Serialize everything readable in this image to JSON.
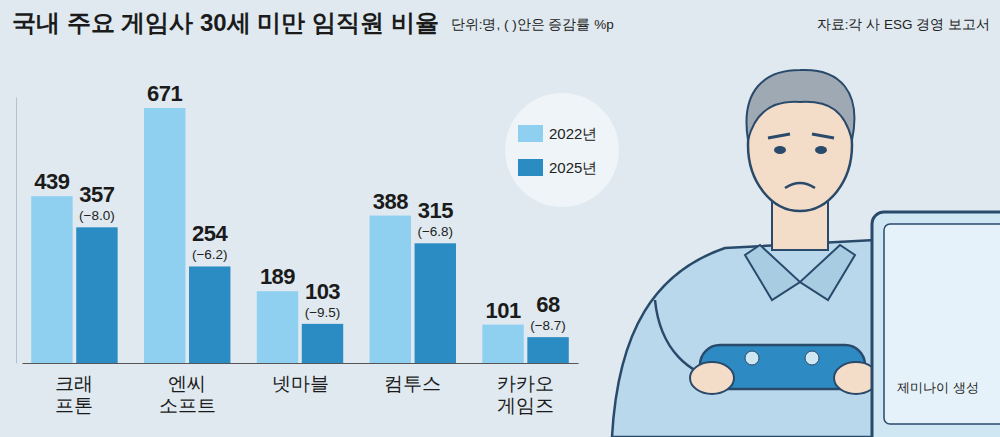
{
  "chart_data": {
    "type": "bar",
    "title": "국내 주요 게임사 30세 미만 임직원 비율",
    "subtitle": "단위:명, ( )안은 증감률 %p",
    "source": "자료:각 사 ESG 경영 보고서",
    "image_credit": "제미나이 생성",
    "categories": [
      "크래프톤",
      "엔씨소프트",
      "넷마블",
      "컴투스",
      "카카오게임즈"
    ],
    "series": [
      {
        "name": "2022년",
        "color": "#8fd0f1",
        "values": [
          439,
          671,
          189,
          388,
          101
        ]
      },
      {
        "name": "2025년",
        "color": "#2b8bc3",
        "values": [
          357,
          254,
          103,
          315,
          68
        ],
        "change_labels": [
          "(−8.0)",
          "(−6.2)",
          "(−9.5)",
          "(−6.8)",
          "(−8.7)"
        ]
      }
    ],
    "ylim": [
      0,
      700
    ],
    "yticks": [],
    "tick_labels": "x",
    "grid": false,
    "legend": "upper right",
    "data_labels": true
  }
}
